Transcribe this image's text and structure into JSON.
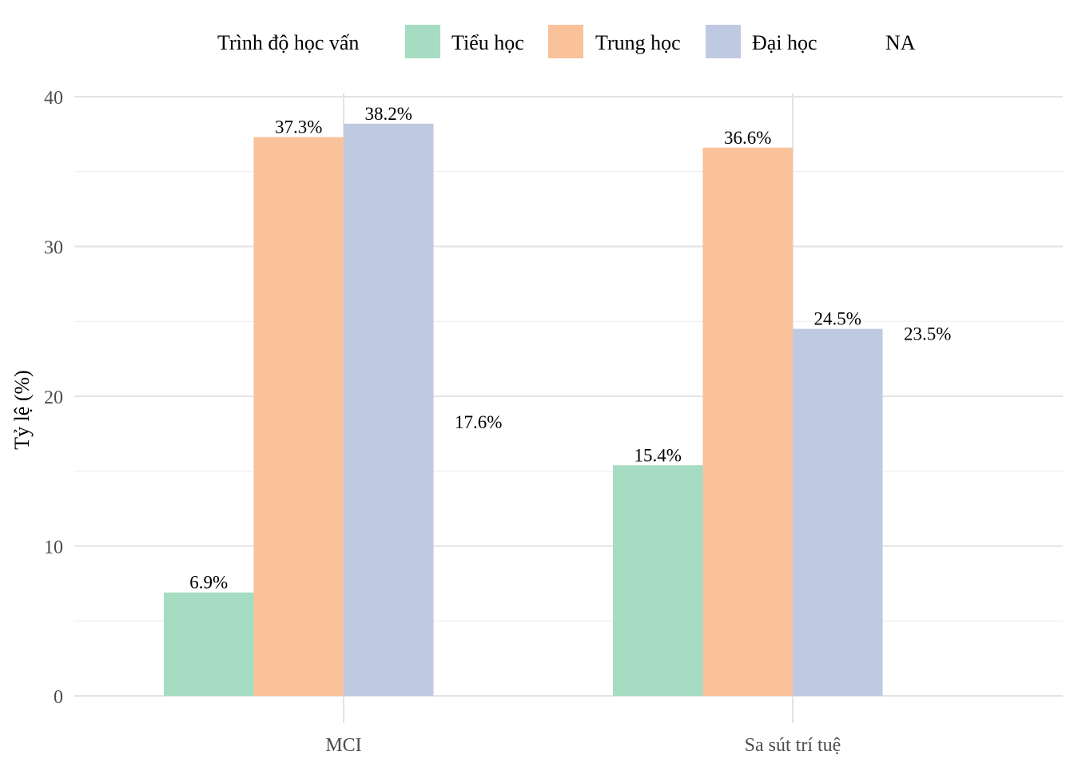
{
  "chart_data": {
    "type": "bar",
    "title": "",
    "xlabel": "",
    "ylabel": "Tỷ lệ (%)",
    "ylim": [
      0,
      40
    ],
    "yticks": [
      0,
      10,
      20,
      30,
      40
    ],
    "categories": [
      "MCI",
      "Sa sút trí tuệ"
    ],
    "legend": {
      "title": "Trình độ học vấn",
      "position": "top"
    },
    "grid": true,
    "series": [
      {
        "name": "Tiểu học",
        "color": "#a6dcc1",
        "values": [
          6.9,
          15.4
        ],
        "labels": [
          "6.9%",
          "15.4%"
        ]
      },
      {
        "name": "Trung học",
        "color": "#f9c29b",
        "values": [
          37.3,
          36.6
        ],
        "labels": [
          "37.3%",
          "36.6%"
        ]
      },
      {
        "name": "Đại học",
        "color": "#c0c9e2",
        "values": [
          38.2,
          24.5
        ],
        "labels": [
          "38.2%",
          "24.5%"
        ]
      },
      {
        "name": "NA",
        "color": null,
        "values": [
          17.6,
          23.5
        ],
        "labels": [
          "17.6%",
          "23.5%"
        ]
      }
    ]
  }
}
